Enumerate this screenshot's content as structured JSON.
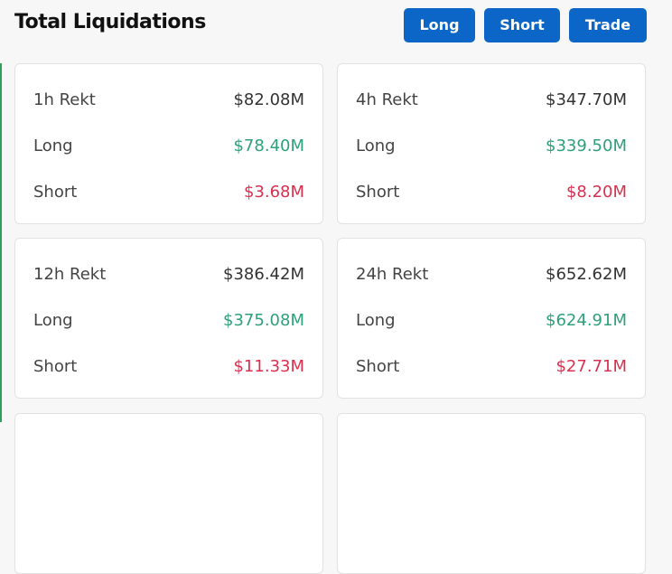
{
  "header": {
    "title": "Total Liquidations",
    "buttons": [
      "Long",
      "Short",
      "Trade"
    ]
  },
  "cards": [
    {
      "rows": [
        [
          "1h Rekt",
          "$82.08M"
        ],
        [
          "Long",
          "$78.40M"
        ],
        [
          "Short",
          "$3.68M"
        ]
      ]
    },
    {
      "rows": [
        [
          "4h Rekt",
          "$347.70M"
        ],
        [
          "Long",
          "$339.50M"
        ],
        [
          "Short",
          "$8.20M"
        ]
      ]
    },
    {
      "rows": [
        [
          "12h Rekt",
          "$386.42M"
        ],
        [
          "Long",
          "$375.08M"
        ],
        [
          "Short",
          "$11.33M"
        ]
      ]
    },
    {
      "rows": [
        [
          "24h Rekt",
          "$652.62M"
        ],
        [
          "Long",
          "$624.91M"
        ],
        [
          "Short",
          "$27.71M"
        ]
      ]
    }
  ]
}
